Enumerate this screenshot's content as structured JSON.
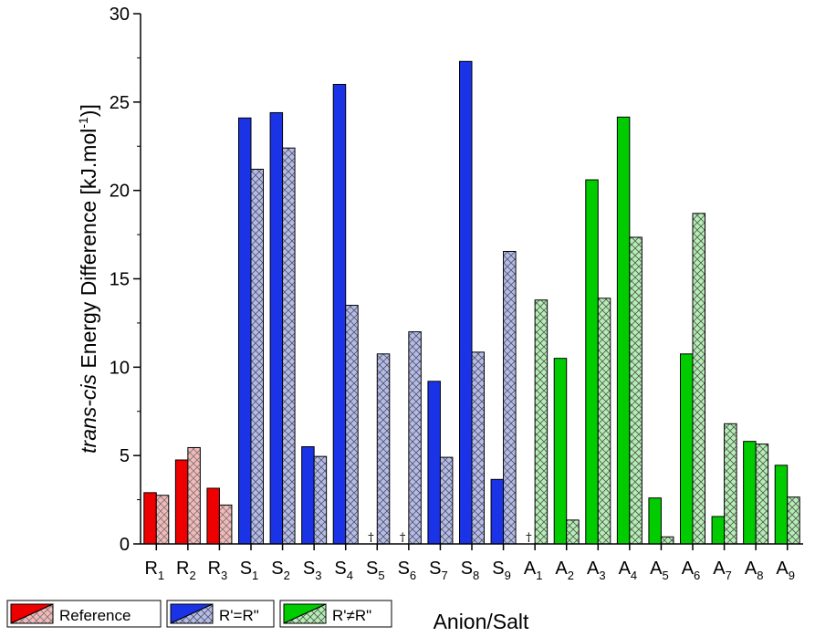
{
  "chart_data": {
    "type": "bar",
    "ylabel_italic": "trans-cis",
    "ylabel_rest": " Energy Difference [kJ.mol",
    "ylabel_sup": "-1",
    "ylabel_close": ")]",
    "xlabel": "Anion/Salt",
    "ylim": [
      0,
      30
    ],
    "yticks": [
      0,
      5,
      10,
      15,
      20,
      25,
      30
    ],
    "categories": [
      {
        "main": "R",
        "sub": "1",
        "group": "Reference"
      },
      {
        "main": "R",
        "sub": "2",
        "group": "Reference"
      },
      {
        "main": "R",
        "sub": "3",
        "group": "Reference"
      },
      {
        "main": "S",
        "sub": "1",
        "group": "R'=R\""
      },
      {
        "main": "S",
        "sub": "2",
        "group": "R'=R\""
      },
      {
        "main": "S",
        "sub": "3",
        "group": "R'=R\""
      },
      {
        "main": "S",
        "sub": "4",
        "group": "R'=R\""
      },
      {
        "main": "S",
        "sub": "5",
        "group": "R'=R\""
      },
      {
        "main": "S",
        "sub": "6",
        "group": "R'=R\""
      },
      {
        "main": "S",
        "sub": "7",
        "group": "R'=R\""
      },
      {
        "main": "S",
        "sub": "8",
        "group": "R'=R\""
      },
      {
        "main": "S",
        "sub": "9",
        "group": "R'=R\""
      },
      {
        "main": "A",
        "sub": "1",
        "group": "R'≠R\""
      },
      {
        "main": "A",
        "sub": "2",
        "group": "R'≠R\""
      },
      {
        "main": "A",
        "sub": "3",
        "group": "R'≠R\""
      },
      {
        "main": "A",
        "sub": "4",
        "group": "R'≠R\""
      },
      {
        "main": "A",
        "sub": "5",
        "group": "R'≠R\""
      },
      {
        "main": "A",
        "sub": "6",
        "group": "R'≠R\""
      },
      {
        "main": "A",
        "sub": "7",
        "group": "R'≠R\""
      },
      {
        "main": "A",
        "sub": "8",
        "group": "R'≠R\""
      },
      {
        "main": "A",
        "sub": "9",
        "group": "R'≠R\""
      }
    ],
    "series": [
      {
        "name": "solid",
        "values": [
          2.9,
          4.75,
          3.15,
          24.1,
          24.4,
          5.5,
          26.0,
          null,
          null,
          9.2,
          27.3,
          3.65,
          null,
          10.5,
          20.6,
          24.15,
          2.6,
          10.75,
          1.55,
          5.8,
          4.45
        ]
      },
      {
        "name": "hatched",
        "values": [
          2.75,
          5.45,
          2.2,
          21.2,
          22.4,
          4.95,
          13.5,
          10.75,
          12.0,
          4.9,
          10.85,
          16.55,
          13.8,
          1.35,
          13.9,
          17.35,
          0.4,
          18.7,
          6.8,
          5.65,
          2.65
        ]
      }
    ],
    "missing_marker": "†",
    "missing_solid_indices": [
      7,
      8,
      12
    ],
    "legend": [
      {
        "label": "Reference",
        "solid_color": "#ee0000",
        "hatch_color": "#f4b8b8"
      },
      {
        "label": "R'=R\"",
        "solid_color": "#1a33e6",
        "hatch_color": "#b3bbee"
      },
      {
        "label": "R'≠R\"",
        "solid_color": "#00cc00",
        "hatch_color": "#b3eeb3"
      }
    ]
  }
}
